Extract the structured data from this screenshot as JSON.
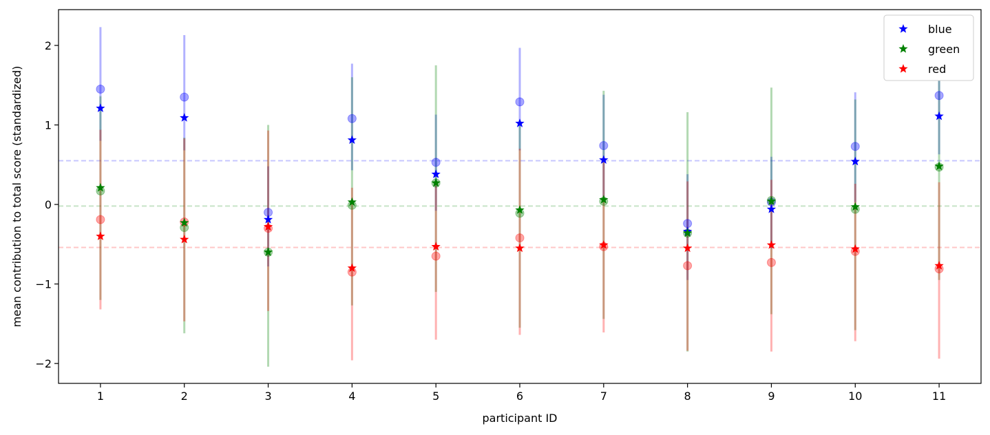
{
  "chart_data": {
    "type": "scatter",
    "xlabel": "participant ID",
    "ylabel": "mean contribution to total score (standardized)",
    "x": [
      1,
      2,
      3,
      4,
      5,
      6,
      7,
      8,
      9,
      10,
      11
    ],
    "xlim": [
      0.5,
      11.5
    ],
    "ylim": [
      -2.25,
      2.45
    ],
    "yticks": [
      -2,
      -1,
      0,
      1,
      2
    ],
    "xtick_labels": [
      "1",
      "2",
      "3",
      "4",
      "5",
      "6",
      "7",
      "8",
      "9",
      "10",
      "11"
    ],
    "ytick_labels": [
      "−2",
      "−1",
      "0",
      "1",
      "2"
    ],
    "legend_position": "top-right",
    "series": [
      {
        "name": "blue",
        "color": "#0000ff",
        "star_values": [
          1.21,
          1.09,
          -0.19,
          0.81,
          0.38,
          1.02,
          0.56,
          -0.34,
          -0.06,
          0.54,
          1.11
        ],
        "circle_values": [
          1.45,
          1.35,
          -0.1,
          1.08,
          0.53,
          1.29,
          0.74,
          -0.24,
          0.03,
          0.73,
          1.37
        ],
        "error_low": [
          0.8,
          0.68,
          -0.78,
          0.43,
          -0.08,
          0.68,
          0.03,
          -0.95,
          -0.55,
          0.03,
          0.63
        ],
        "error_high": [
          2.23,
          2.13,
          0.48,
          1.77,
          1.13,
          1.97,
          1.38,
          0.38,
          0.6,
          1.41,
          1.89
        ],
        "mean_line": 0.55
      },
      {
        "name": "green",
        "color": "#008000",
        "star_values": [
          0.21,
          -0.23,
          -0.6,
          0.03,
          0.27,
          -0.07,
          0.06,
          -0.36,
          0.04,
          -0.03,
          0.48
        ],
        "circle_values": [
          0.17,
          -0.29,
          -0.6,
          -0.01,
          0.27,
          -0.11,
          0.04,
          -0.36,
          0.05,
          -0.06,
          0.47
        ],
        "error_low": [
          -1.2,
          -1.62,
          -2.04,
          -1.27,
          -1.1,
          -1.55,
          -1.44,
          -1.85,
          -1.38,
          -1.58,
          -0.95
        ],
        "error_high": [
          1.36,
          0.84,
          1.0,
          1.6,
          1.75,
          1.03,
          1.43,
          1.16,
          1.47,
          1.32,
          1.9
        ],
        "mean_line": -0.02
      },
      {
        "name": "red",
        "color": "#ff0000",
        "star_values": [
          -0.4,
          -0.44,
          -0.28,
          -0.8,
          -0.53,
          -0.55,
          -0.51,
          -0.55,
          -0.51,
          -0.56,
          -0.77
        ],
        "circle_values": [
          -0.19,
          -0.22,
          -0.3,
          -0.85,
          -0.65,
          -0.42,
          -0.53,
          -0.77,
          -0.73,
          -0.59,
          -0.81
        ],
        "error_low": [
          -1.32,
          -1.47,
          -1.34,
          -1.96,
          -1.7,
          -1.64,
          -1.61,
          -1.84,
          -1.85,
          -1.72,
          -1.94
        ],
        "error_high": [
          0.94,
          0.83,
          0.93,
          0.21,
          0.24,
          0.7,
          0.53,
          0.29,
          0.31,
          0.26,
          0.28
        ],
        "mean_line": -0.54
      }
    ]
  }
}
